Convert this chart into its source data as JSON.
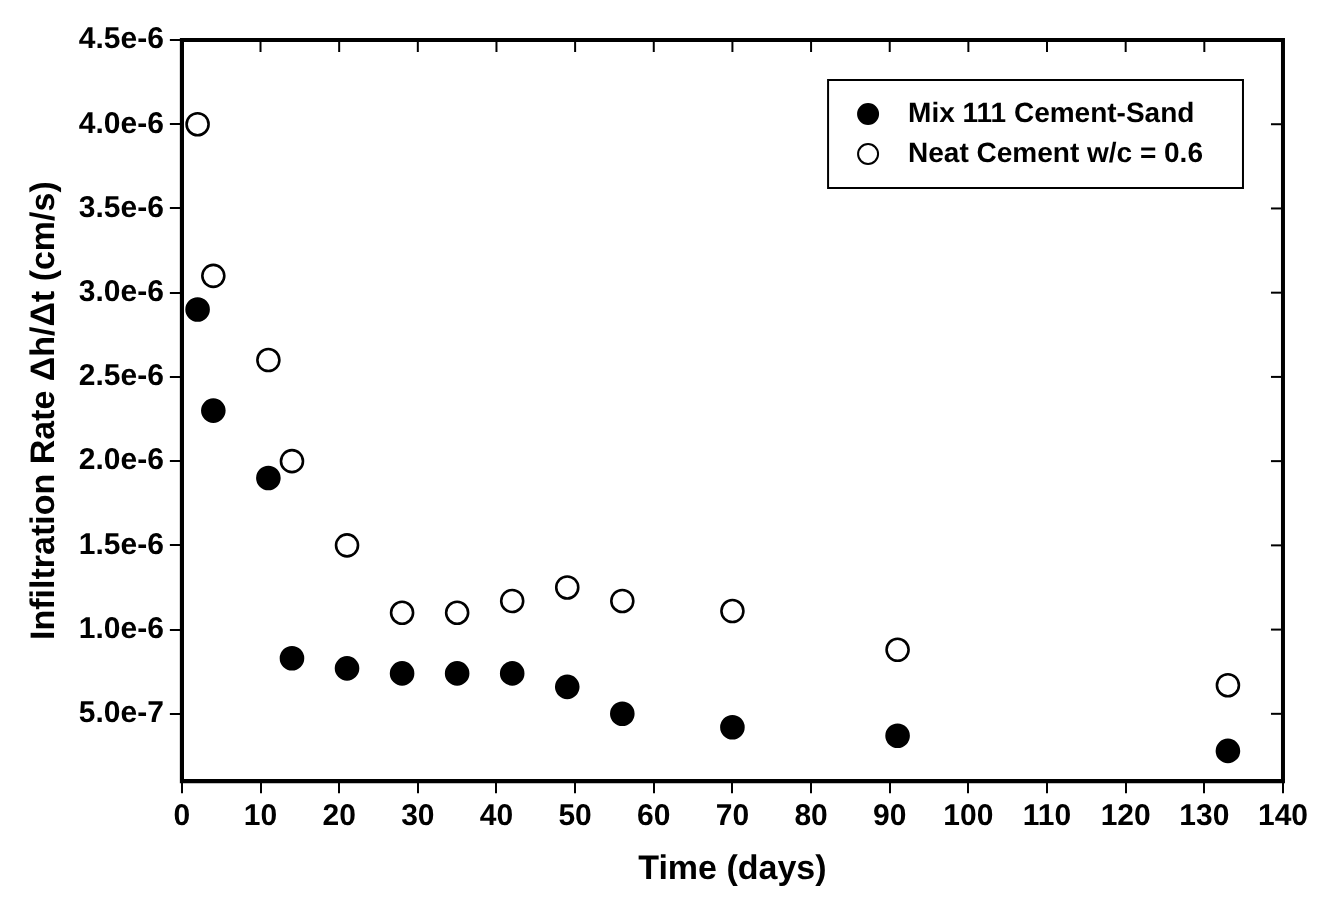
{
  "chart_data": {
    "type": "scatter",
    "xlabel": "Time (days)",
    "ylabel": "Infiltration Rate Δh/Δt (cm/s)",
    "xlim": [
      0,
      140
    ],
    "xticks": [
      0,
      10,
      20,
      30,
      40,
      50,
      60,
      70,
      80,
      90,
      100,
      110,
      120,
      130,
      140
    ],
    "ylim": [
      1e-07,
      4.5e-06
    ],
    "yticks": [
      {
        "value": 5e-07,
        "label": "5.0e-7"
      },
      {
        "value": 1e-06,
        "label": "1.0e-6"
      },
      {
        "value": 1.5e-06,
        "label": "1.5e-6"
      },
      {
        "value": 2e-06,
        "label": "2.0e-6"
      },
      {
        "value": 2.5e-06,
        "label": "2.5e-6"
      },
      {
        "value": 3e-06,
        "label": "3.0e-6"
      },
      {
        "value": 3.5e-06,
        "label": "3.5e-6"
      },
      {
        "value": 4e-06,
        "label": "4.0e-6"
      },
      {
        "value": 4.5e-06,
        "label": "4.5e-6"
      }
    ],
    "x": [
      2,
      4,
      11,
      14,
      21,
      28,
      35,
      42,
      49,
      56,
      70,
      91,
      133
    ],
    "series": [
      {
        "name": "Mix 111 Cement-Sand",
        "color": "#000000",
        "values": [
          2.9e-06,
          2.3e-06,
          1.9e-06,
          8.3e-07,
          7.7e-07,
          7.4e-07,
          7.4e-07,
          7.4e-07,
          6.6e-07,
          5e-07,
          4.2e-07,
          3.7e-07,
          2.8e-07
        ]
      },
      {
        "name": "Neat Cement w/c = 0.6",
        "color": "#ffffff",
        "values": [
          4e-06,
          3.1e-06,
          2.6e-06,
          2e-06,
          1.5e-06,
          1.1e-06,
          1.1e-06,
          1.17e-06,
          1.25e-06,
          1.17e-06,
          1.11e-06,
          8.8e-07,
          6.7e-07
        ]
      }
    ],
    "marker": "circle",
    "legend": "top right",
    "grid": false
  }
}
